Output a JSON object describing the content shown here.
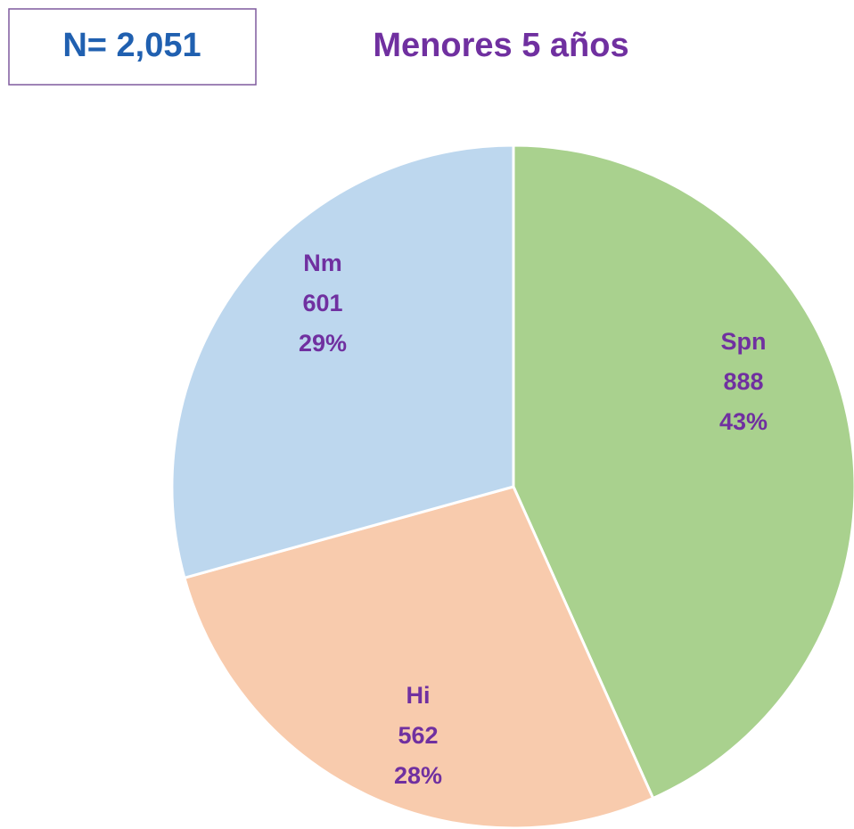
{
  "chart_data": {
    "type": "pie",
    "title": "Menores 5 años",
    "n_label": "N= 2,051",
    "categories": [
      "Spn",
      "Hi",
      "Nm"
    ],
    "values": [
      888,
      562,
      601
    ],
    "percent_labels": [
      "43%",
      "28%",
      "29%"
    ],
    "colors": [
      "#a9d18e",
      "#f8cbad",
      "#bdd7ee"
    ]
  }
}
